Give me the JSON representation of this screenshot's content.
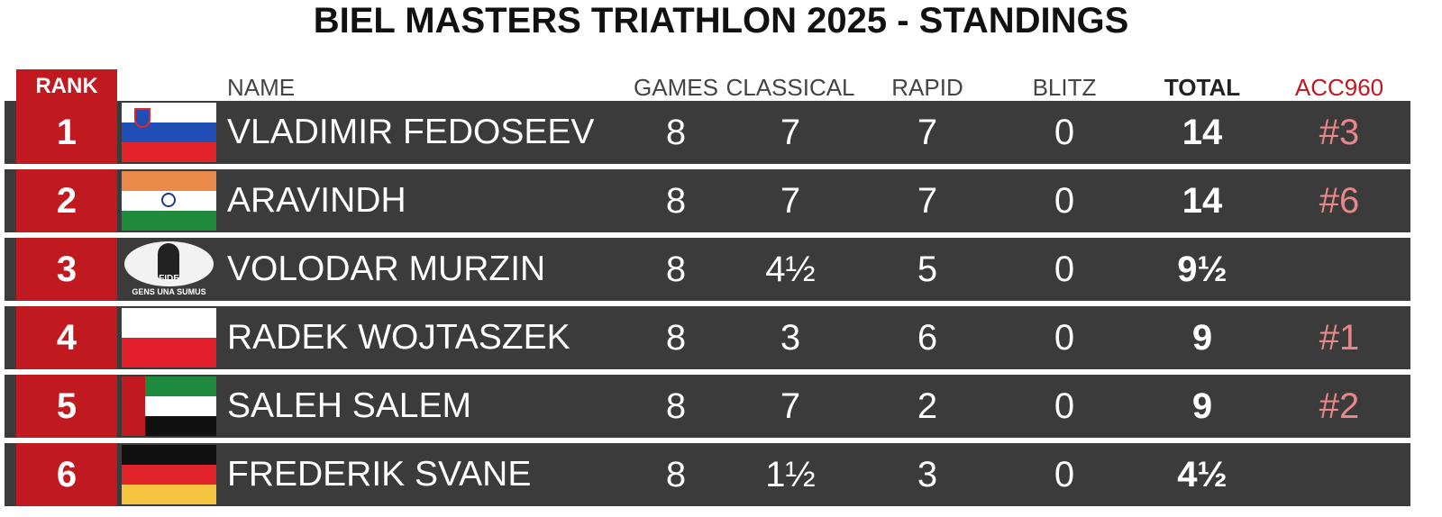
{
  "title": "BIEL MASTERS TRIATHLON 2025 - STANDINGS",
  "table": {
    "headers": {
      "rank": "RANK",
      "name": "NAME",
      "games": "GAMES",
      "classical": "CLASSICAL",
      "rapid": "RAPID",
      "blitz": "BLITZ",
      "total": "TOTAL",
      "acc960": "ACC960"
    },
    "rows": [
      {
        "rank": "1",
        "name": "VLADIMIR FEDOSEEV",
        "games": "8",
        "classical": "7",
        "rapid": "7",
        "blitz": "0",
        "total": "14",
        "acc960": "#3"
      },
      {
        "rank": "2",
        "name": "ARAVINDH",
        "games": "8",
        "classical": "7",
        "rapid": "7",
        "blitz": "0",
        "total": "14",
        "acc960": "#6"
      },
      {
        "rank": "3",
        "name": "VOLODAR MURZIN",
        "games": "8",
        "classical": "4½",
        "rapid": "5",
        "blitz": "0",
        "total": "9½",
        "logo": {
          "top": "FIDE",
          "bottom": "GENS UNA SUMUS"
        }
      },
      {
        "rank": "4",
        "name": "RADEK WOJTASZEK",
        "games": "8",
        "classical": "3",
        "rapid": "6",
        "blitz": "0",
        "total": "9",
        "acc960": "#1"
      },
      {
        "rank": "5",
        "name": "SALEH SALEM",
        "games": "8",
        "classical": "7",
        "rapid": "2",
        "blitz": "0",
        "total": "9",
        "acc960": "#2"
      },
      {
        "rank": "6",
        "name": "FREDERIK SVANE",
        "games": "8",
        "classical": "1½",
        "rapid": "3",
        "blitz": "0",
        "total": "4½"
      }
    ]
  }
}
